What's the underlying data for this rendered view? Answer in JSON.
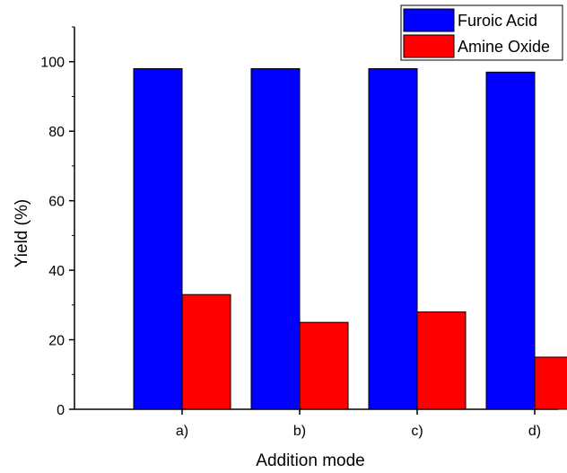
{
  "chart_data": {
    "type": "bar",
    "categories": [
      "a)",
      "b)",
      "c)",
      "d)"
    ],
    "series": [
      {
        "name": "Furoic Acid",
        "values": [
          98,
          98,
          98,
          97
        ],
        "color": "#0000ff"
      },
      {
        "name": "Amine Oxide",
        "values": [
          33,
          25,
          28,
          15
        ],
        "color": "#ff0000"
      }
    ],
    "xlabel": "Addition mode",
    "ylabel": "Yield (%)",
    "ylim": [
      0,
      110
    ],
    "yticks": [
      0,
      20,
      40,
      60,
      80,
      100
    ],
    "grid": false,
    "legend_position": "top-right"
  }
}
